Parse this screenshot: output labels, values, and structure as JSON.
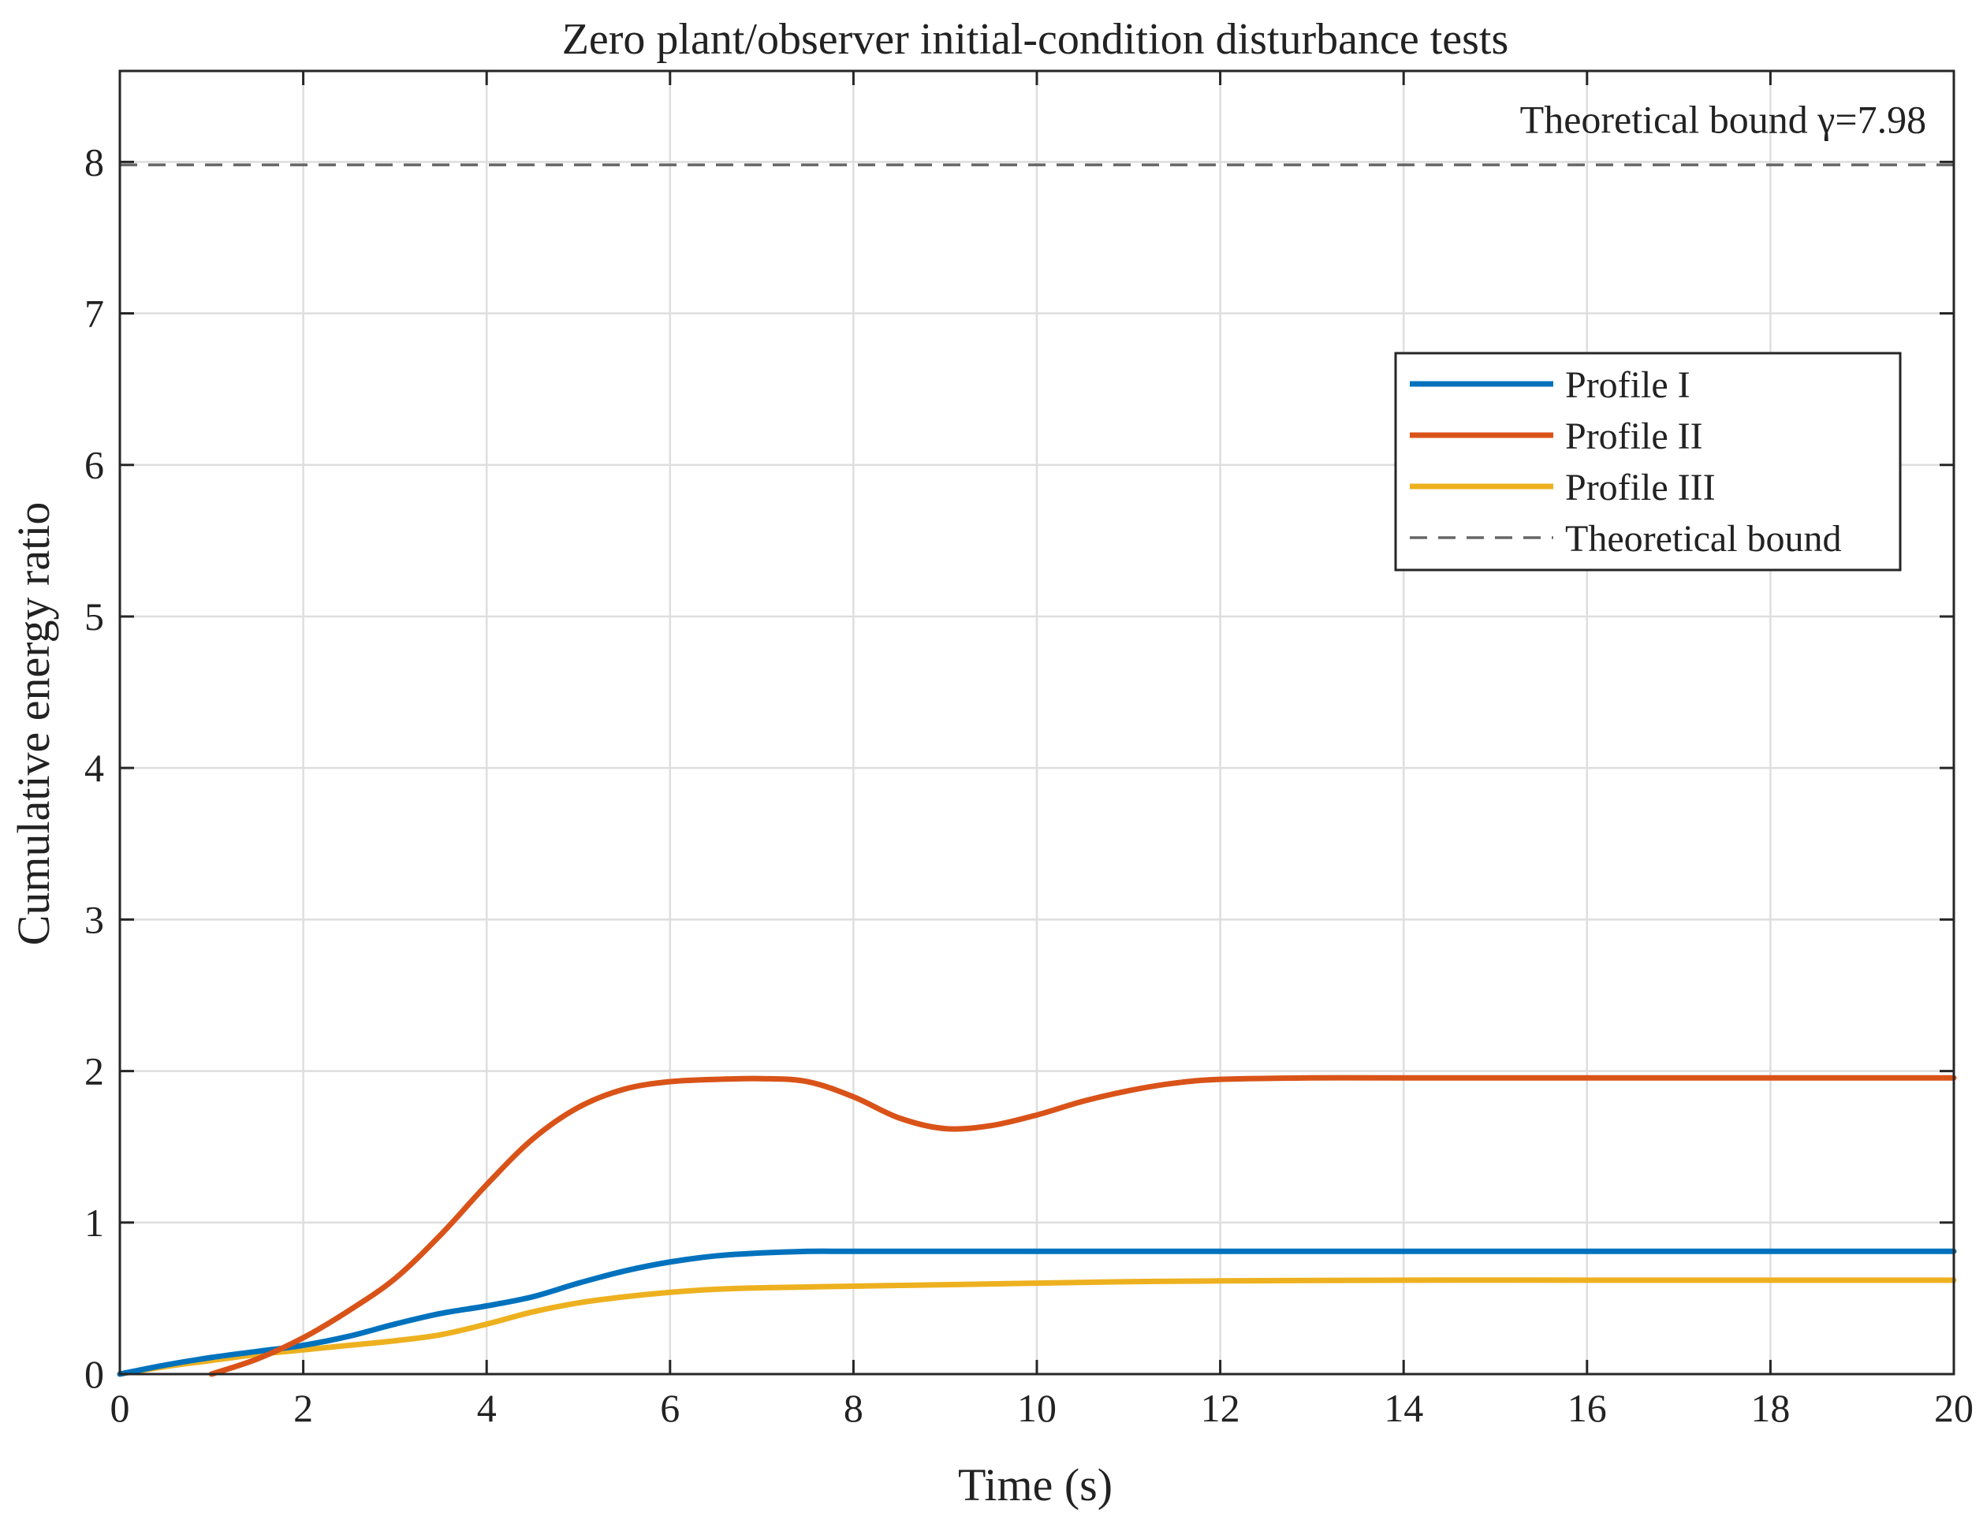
{
  "chart_data": {
    "type": "line",
    "title": "Zero plant/observer initial-condition disturbance tests",
    "xlabel": "Time (s)",
    "ylabel": "Cumulative energy ratio",
    "xlim": [
      0,
      20
    ],
    "ylim": [
      0,
      8.6
    ],
    "xticks": [
      0,
      2,
      4,
      6,
      8,
      10,
      12,
      14,
      16,
      18,
      20
    ],
    "yticks": [
      0,
      1,
      2,
      3,
      4,
      5,
      6,
      7,
      8
    ],
    "xtick_labels": [
      "0",
      "2",
      "4",
      "6",
      "8",
      "10",
      "12",
      "14",
      "16",
      "18",
      "20"
    ],
    "ytick_labels": [
      "0",
      "1",
      "2",
      "3",
      "4",
      "5",
      "6",
      "7",
      "8"
    ],
    "grid": true,
    "legend_position": "top-right",
    "series": [
      {
        "name": "Profile I",
        "color": "#0072BD",
        "style": "solid",
        "x": [
          0,
          0.5,
          1,
          1.5,
          2,
          2.5,
          3,
          3.5,
          4,
          4.5,
          5,
          5.5,
          6,
          6.5,
          7,
          7.5,
          8,
          9,
          10,
          12,
          14,
          16,
          18,
          20
        ],
        "y": [
          0,
          0.06,
          0.11,
          0.15,
          0.19,
          0.25,
          0.33,
          0.4,
          0.45,
          0.51,
          0.6,
          0.68,
          0.74,
          0.78,
          0.8,
          0.81,
          0.81,
          0.81,
          0.81,
          0.81,
          0.81,
          0.81,
          0.81,
          0.81
        ]
      },
      {
        "name": "Profile II",
        "color": "#D95319",
        "style": "solid",
        "x": [
          1.0,
          1.5,
          2.0,
          2.5,
          3.0,
          3.5,
          4.0,
          4.5,
          5.0,
          5.5,
          6.0,
          6.5,
          7.0,
          7.5,
          8.0,
          8.5,
          9.0,
          9.5,
          10.0,
          10.5,
          11.0,
          11.5,
          12.0,
          13,
          14,
          16,
          18,
          20
        ],
        "y": [
          0,
          0.1,
          0.24,
          0.42,
          0.63,
          0.92,
          1.25,
          1.55,
          1.76,
          1.88,
          1.93,
          1.945,
          1.95,
          1.93,
          1.83,
          1.69,
          1.62,
          1.64,
          1.71,
          1.8,
          1.87,
          1.92,
          1.945,
          1.955,
          1.955,
          1.955,
          1.955,
          1.955
        ]
      },
      {
        "name": "Profile III",
        "color": "#EDB120",
        "style": "solid",
        "x": [
          0,
          0.5,
          1,
          1.5,
          2,
          2.5,
          3,
          3.5,
          4,
          4.5,
          5,
          5.5,
          6,
          6.5,
          7,
          8,
          9,
          10,
          11,
          12,
          14,
          16,
          18,
          20
        ],
        "y": [
          0,
          0.05,
          0.09,
          0.13,
          0.16,
          0.19,
          0.22,
          0.26,
          0.33,
          0.41,
          0.47,
          0.51,
          0.54,
          0.56,
          0.57,
          0.58,
          0.59,
          0.6,
          0.61,
          0.615,
          0.62,
          0.62,
          0.62,
          0.62
        ]
      },
      {
        "name": "Theoretical bound",
        "color": "#666666",
        "style": "dashed",
        "x": [
          0,
          20
        ],
        "y": [
          7.98,
          7.98
        ]
      }
    ],
    "annotations": [
      {
        "text": "Theoretical bound γ=7.98",
        "x": 19.7,
        "y": 8.28
      }
    ]
  }
}
